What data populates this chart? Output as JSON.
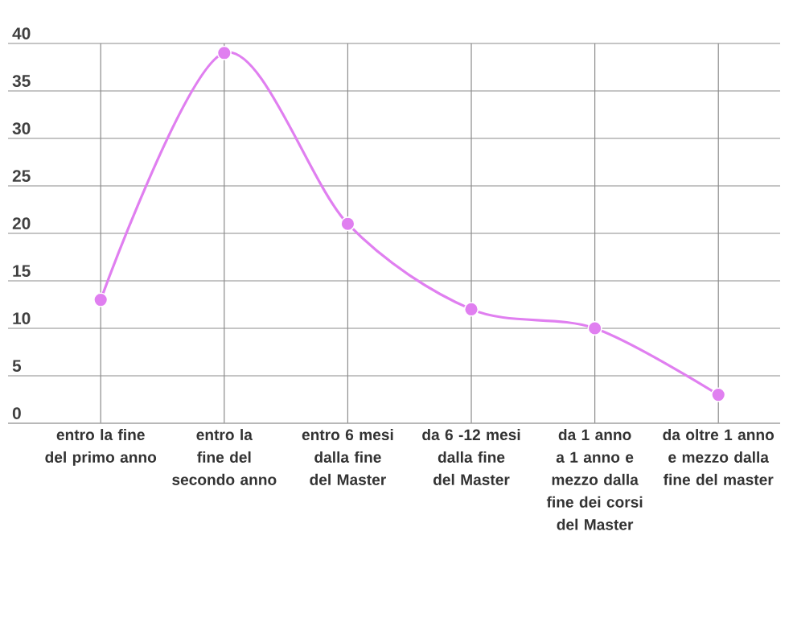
{
  "chart_data": {
    "type": "line",
    "categories": [
      "entro la fine del primo anno",
      "entro la fine del secondo anno",
      "entro 6 mesi dalla fine del Master",
      "da 6 -12 mesi dalla fine del Master",
      "da 1 anno a 1 anno e mezzo dalla fine dei corsi del Master",
      "da oltre 1 anno e mezzo dalla fine del master"
    ],
    "values": [
      13,
      39,
      21,
      12,
      10,
      3
    ],
    "color": "#e07ff0",
    "ylim": [
      0,
      40
    ],
    "yticks": [
      0,
      5,
      10,
      15,
      20,
      25,
      30,
      35,
      40
    ],
    "grid": true,
    "marker": "circle"
  }
}
